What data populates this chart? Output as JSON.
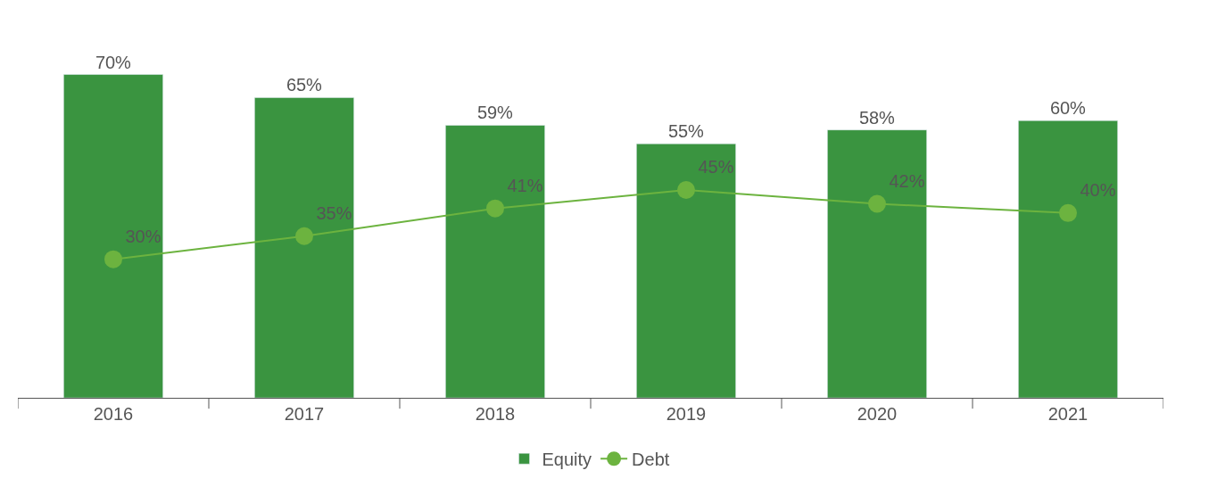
{
  "chart_data": {
    "type": "bar",
    "categories": [
      "2016",
      "2017",
      "2018",
      "2019",
      "2020",
      "2021"
    ],
    "series": [
      {
        "name": "Equity",
        "color": "#3a9440",
        "values": [
          70,
          65,
          59,
          55,
          58,
          60
        ],
        "value_labels": [
          "70%",
          "65%",
          "59%",
          "55%",
          "58%",
          "60%"
        ]
      },
      {
        "name": "Debt",
        "type": "line",
        "color": "#6cb33f",
        "values": [
          30,
          35,
          41,
          45,
          42,
          40
        ],
        "value_labels": [
          "30%",
          "35%",
          "41%",
          "45%",
          "42%",
          "40%"
        ]
      }
    ],
    "marker": "circle",
    "line_style": "solid",
    "legend": "bottom",
    "tick_labels": "x"
  }
}
